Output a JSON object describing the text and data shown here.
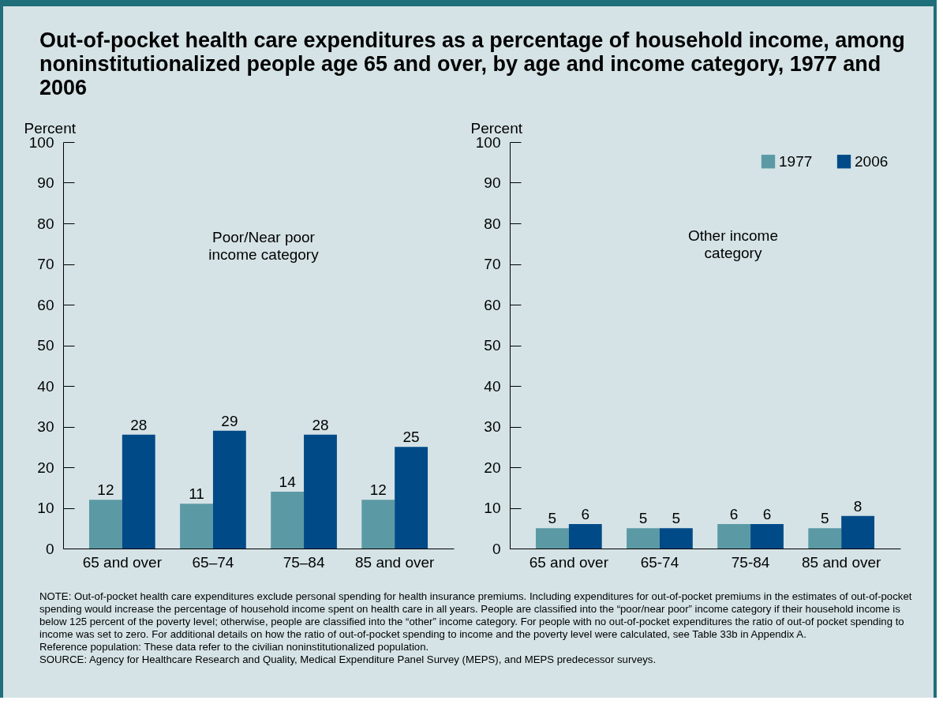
{
  "chart_data": [
    {
      "type": "bar",
      "title": "Out-of-pocket health care expenditures as a percentage of household income, among noninstitutionalized people age 65 and over, by age and income category, 1977 and 2006",
      "subtitle": "Poor/Near poor income category",
      "ylabel": "Percent",
      "categories": [
        "65 and over",
        "65–74",
        "75–84",
        "85 and over"
      ],
      "series": [
        {
          "color": "#5b9aa5",
          "values": [
            12,
            11,
            14,
            12
          ]
        },
        {
          "color": "#004a87",
          "values": [
            28,
            29,
            28,
            25
          ]
        }
      ],
      "ylim": [
        0,
        100
      ],
      "yticks": [
        0,
        10,
        20,
        30,
        40,
        50,
        60,
        70,
        80,
        90,
        100
      ],
      "data_labels": true,
      "annotations": [
        "NOTE:  Out-of-pocket health care expenditures exclude personal spending for health insurance premiums. Including expenditures for out-of-pocket premiums in the estimates of out-of-pocket spending would increase the percentage of household income spent on health care in all years. People are classified into the “poor/near poor” income category if their household income is below 125 percent of the poverty level; otherwise, people are classified into the “other” income category. For people with no out-of-pocket expenditures the ratio of out-of pocket spending to income was set to zero. For additional details on how the ratio of out-of-pocket spending to income and the poverty level were calculated, see Table 33b in Appendix A.",
        "Reference population:  These data refer to the civilian noninstitutionalized population.",
        "SOURCE: Agency for Healthcare Research and Quality, Medical Expenditure Panel Survey (MEPS), and MEPS predecessor surveys."
      ]
    },
    {
      "type": "bar",
      "subtitle": "Other income category",
      "ylabel": "Percent",
      "categories": [
        "65 and over",
        "65-74",
        "75-84",
        "85 and over"
      ],
      "series": [
        {
          "name": "1977",
          "color": "#5b9aa5",
          "values": [
            5,
            5,
            6,
            5
          ]
        },
        {
          "name": "2006",
          "color": "#004a87",
          "values": [
            6,
            5,
            6,
            8
          ]
        }
      ],
      "ylim": [
        0,
        100
      ],
      "yticks": [
        0,
        10,
        20,
        30,
        40,
        50,
        60,
        70,
        80,
        90,
        100
      ],
      "data_labels": true,
      "legend": "top right"
    }
  ]
}
